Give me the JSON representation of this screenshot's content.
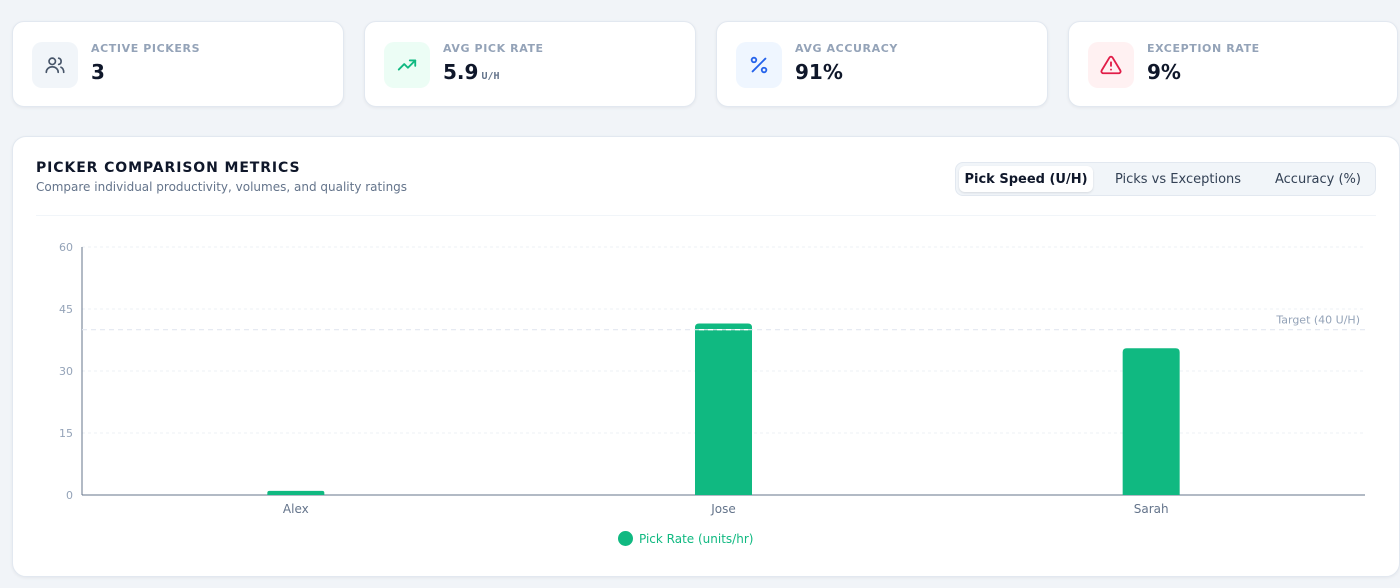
{
  "kpis": [
    {
      "label": "ACTIVE PICKERS",
      "value": "3",
      "unit": "",
      "icon": "users-icon",
      "icon_bg": "#f1f5f9",
      "icon_color": "#475569"
    },
    {
      "label": "AVG PICK RATE",
      "value": "5.9",
      "unit": "U/H",
      "icon": "trending-up-icon",
      "icon_bg": "#ecfdf5",
      "icon_color": "#10b981"
    },
    {
      "label": "AVG ACCURACY",
      "value": "91%",
      "unit": "",
      "icon": "percent-icon",
      "icon_bg": "#eff6ff",
      "icon_color": "#2563eb"
    },
    {
      "label": "EXCEPTION RATE",
      "value": "9%",
      "unit": "",
      "icon": "alert-triangle-icon",
      "icon_bg": "#fff1f2",
      "icon_color": "#e11d48"
    }
  ],
  "panel": {
    "title": "PICKER COMPARISON METRICS",
    "subtitle": "Compare individual productivity, volumes, and quality ratings",
    "tabs": [
      {
        "label": "Pick Speed (U/H)",
        "active": true
      },
      {
        "label": "Picks vs Exceptions",
        "active": false
      },
      {
        "label": "Accuracy (%)",
        "active": false
      }
    ]
  },
  "chart_data": {
    "type": "bar",
    "categories": [
      "Alex",
      "Jose",
      "Sarah"
    ],
    "series": [
      {
        "name": "Pick Rate (units/hr)",
        "values": [
          1,
          41.5,
          35.5
        ],
        "color": "#10b981"
      }
    ],
    "ylim": [
      0,
      60
    ],
    "yticks": [
      0,
      15,
      30,
      45,
      60
    ],
    "grid": true,
    "legend": "bottom-center",
    "reference_line": {
      "value": 40,
      "label": "Target (40 U/H)"
    }
  }
}
